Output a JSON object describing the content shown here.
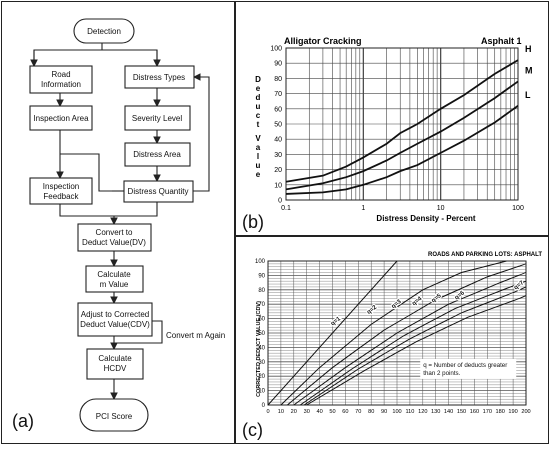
{
  "panel_a": {
    "label": "(a)",
    "nodes": {
      "detection": "Detection",
      "road_information": [
        "Road",
        "Information"
      ],
      "distress_types": "Distress Types",
      "inspection_area": "Inspection Area",
      "severity_level": "Severity Level",
      "distress_area": "Distress Area",
      "inspection_feedback": [
        "Inspection",
        "Feedback"
      ],
      "distress_quantity": "Distress Quantity",
      "convert_dv": [
        "Convert to",
        "Deduct Value(DV)"
      ],
      "calculate_m": [
        "Calculate",
        "m Value"
      ],
      "adjust_cdv": [
        "Adjust to Corrected",
        "Deduct Value(CDV)"
      ],
      "convert_again": "Convert m Again",
      "calculate_hcdv": [
        "Calculate",
        "HCDV"
      ],
      "pci_score": "PCI Score"
    }
  },
  "panel_b": {
    "label": "(b)",
    "chart_data": {
      "type": "line",
      "title": "Alligator Cracking",
      "subtitle": "Asphalt 1",
      "xlabel": "Distress Density - Percent",
      "ylabel": "Deduct Value",
      "xscale": "log",
      "xlim": [
        0.1,
        100
      ],
      "ylim": [
        0,
        100
      ],
      "x_ticks": [
        "0.1",
        "1",
        "10",
        "100"
      ],
      "y_ticks": [
        "0",
        "10",
        "20",
        "30",
        "40",
        "50",
        "60",
        "70",
        "80",
        "90",
        "100"
      ],
      "grid": true,
      "series": [
        {
          "name": "H",
          "x": [
            0.1,
            0.3,
            0.6,
            1,
            2,
            3,
            5,
            10,
            20,
            50,
            100
          ],
          "values": [
            12,
            16,
            22,
            28,
            37,
            44,
            50,
            60,
            69,
            83,
            92
          ]
        },
        {
          "name": "M",
          "x": [
            0.1,
            0.3,
            0.6,
            1,
            2,
            3,
            5,
            10,
            20,
            50,
            100
          ],
          "values": [
            7,
            11,
            15,
            19,
            26,
            31,
            37,
            45,
            54,
            67,
            78
          ]
        },
        {
          "name": "L",
          "x": [
            0.1,
            0.3,
            0.6,
            1,
            2,
            3,
            5,
            10,
            20,
            50,
            100
          ],
          "values": [
            4,
            5,
            7,
            10,
            15,
            19,
            23,
            31,
            39,
            51,
            62
          ]
        }
      ]
    }
  },
  "panel_c": {
    "label": "(c)",
    "chart_data": {
      "type": "line",
      "title": "ROADS AND PARKING LOTS: ASPHALT",
      "xlabel": "",
      "ylabel": "CORRECTED DEDUCT VALUE (CDV)",
      "xlim": [
        0,
        200
      ],
      "ylim": [
        0,
        100
      ],
      "x_ticks": [
        "0",
        "10",
        "20",
        "30",
        "40",
        "50",
        "60",
        "70",
        "80",
        "90",
        "100",
        "110",
        "120",
        "130",
        "140",
        "150",
        "160",
        "170",
        "180",
        "190",
        "200"
      ],
      "y_ticks": [
        "0",
        "10",
        "20",
        "30",
        "40",
        "50",
        "60",
        "70",
        "80",
        "90",
        "100"
      ],
      "grid": true,
      "annotation": [
        "q = Number of deducts greater",
        "than 2 points."
      ],
      "series": [
        {
          "name": "q=1",
          "x": [
            0,
            100
          ],
          "values": [
            0,
            100
          ]
        },
        {
          "name": "q=2",
          "x": [
            10,
            40,
            80,
            120,
            150,
            185
          ],
          "values": [
            0,
            26,
            56,
            80,
            92,
            100
          ]
        },
        {
          "name": "q=3",
          "x": [
            15,
            50,
            90,
            130,
            170,
            200
          ],
          "values": [
            0,
            26,
            52,
            73,
            89,
            98
          ]
        },
        {
          "name": "q=4",
          "x": [
            20,
            60,
            100,
            140,
            180,
            200
          ],
          "values": [
            0,
            26,
            50,
            70,
            85,
            92
          ]
        },
        {
          "name": "q=5",
          "x": [
            25,
            65,
            105,
            145,
            185,
            200
          ],
          "values": [
            0,
            25,
            48,
            67,
            81,
            86
          ]
        },
        {
          "name": "q=6",
          "x": [
            28,
            70,
            110,
            150,
            190,
            200
          ],
          "values": [
            0,
            25,
            46,
            64,
            78,
            82
          ]
        },
        {
          "name": "q=7",
          "x": [
            30,
            75,
            115,
            155,
            195,
            200
          ],
          "values": [
            0,
            24,
            44,
            61,
            74,
            76
          ]
        }
      ]
    }
  }
}
